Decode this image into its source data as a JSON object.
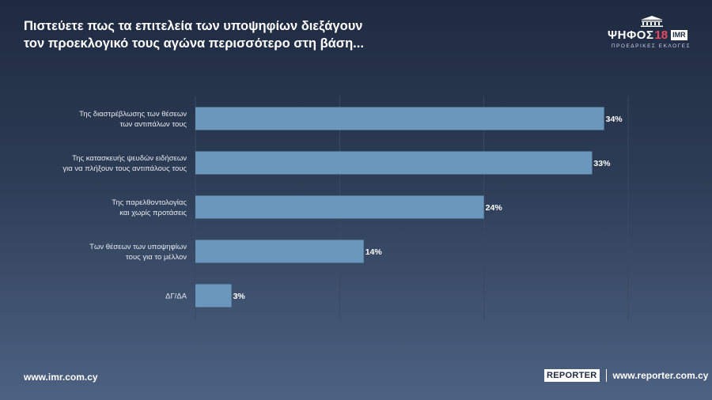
{
  "title_lines": [
    "Πιστεύετε πως τα επιτελεία των υποψηφίων διεξάγουν",
    "τον προεκλογικό τους αγώνα περισσότερο στη βάση..."
  ],
  "logo": {
    "word": "ΨΗΦΟΣ",
    "number": "18",
    "brand": "IMR",
    "subtitle": "ΠΡΟΕΔΡΙΚΕΣ ΕΚΛΟΓΕΣ"
  },
  "footer": {
    "left": "www.imr.com.cy",
    "partner": "REPORTER",
    "right": "www.reporter.com.cy"
  },
  "colors": {
    "bar": "#6a97bb",
    "grid": "#3a4a63"
  },
  "chart_data": {
    "type": "bar",
    "orientation": "horizontal",
    "categories": [
      [
        "Της διαστρέβλωσης των θέσεων",
        "των αντιπάλων τους"
      ],
      [
        "Της κατασκευής ψευδών ειδήσεων",
        "για να πλήξουν τους αντιπάλους τους"
      ],
      [
        "Της παρελθοντολογίας",
        "και χωρίς προτάσεις"
      ],
      [
        "Των θέσεων των υποψηφίων",
        "τους για το μέλλον"
      ],
      [
        "ΔΓ/ΔΑ"
      ]
    ],
    "values": [
      34,
      33,
      24,
      14,
      3
    ],
    "value_labels": [
      "34%",
      "33%",
      "24%",
      "14%",
      "3%"
    ],
    "xlim": [
      0,
      36
    ],
    "gridlines": [
      0,
      12,
      24,
      36
    ],
    "grid": true
  }
}
